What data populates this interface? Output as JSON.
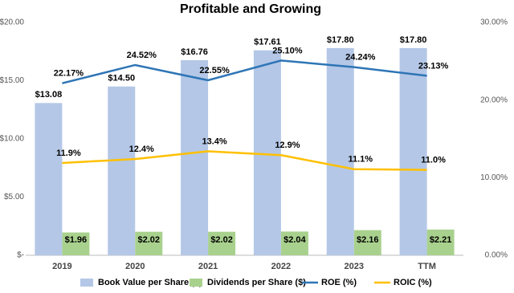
{
  "chart_data": {
    "type": "bar",
    "title": "Profitable and Growing",
    "categories": [
      "2019",
      "2020",
      "2021",
      "2022",
      "2023",
      "TTM"
    ],
    "series": [
      {
        "name": "Book Value per Share ($)",
        "type": "bar",
        "color": "#b4c7e7",
        "values": [
          13.08,
          14.5,
          16.76,
          17.61,
          17.8,
          17.8
        ],
        "value_labels": [
          "$13.08",
          "$14.50",
          "$16.76",
          "$17.61",
          "$17.80",
          "$17.80"
        ]
      },
      {
        "name": "Dividends per Share ($)",
        "type": "bar",
        "color": "#a9d18e",
        "values": [
          1.96,
          2.02,
          2.02,
          2.04,
          2.16,
          2.21
        ],
        "value_labels": [
          "$1.96",
          "$2.02",
          "$2.02",
          "$2.04",
          "$2.16",
          "$2.21"
        ]
      },
      {
        "name": "ROE (%)",
        "type": "line",
        "axis": "y2",
        "color": "#2e75b6",
        "values": [
          22.17,
          24.52,
          22.55,
          25.1,
          24.24,
          23.13
        ],
        "value_labels": [
          "22.17%",
          "24.52%",
          "22.55%",
          "25.10%",
          "24.24%",
          "23.13%"
        ]
      },
      {
        "name": "ROIC (%)",
        "type": "line",
        "axis": "y2",
        "color": "#ffc000",
        "values": [
          11.9,
          12.4,
          13.4,
          12.9,
          11.1,
          11.0
        ],
        "value_labels": [
          "11.9%",
          "12.4%",
          "13.4%",
          "12.9%",
          "11.1%",
          "11.0%"
        ]
      }
    ],
    "ylim": [
      0,
      20
    ],
    "yticks": [
      {
        "value": 0,
        "label": "$-"
      },
      {
        "value": 5,
        "label": "$5.00"
      },
      {
        "value": 10,
        "label": "$10.00"
      },
      {
        "value": 15,
        "label": "$15.00"
      },
      {
        "value": 20,
        "label": "$20.00"
      }
    ],
    "y2lim": [
      0,
      30
    ],
    "y2ticks": [
      {
        "value": 0,
        "label": "0.00%"
      },
      {
        "value": 10,
        "label": "10.00%"
      },
      {
        "value": 20,
        "label": "20.00%"
      },
      {
        "value": 30,
        "label": "30.00%"
      }
    ],
    "legend": "bottom"
  }
}
